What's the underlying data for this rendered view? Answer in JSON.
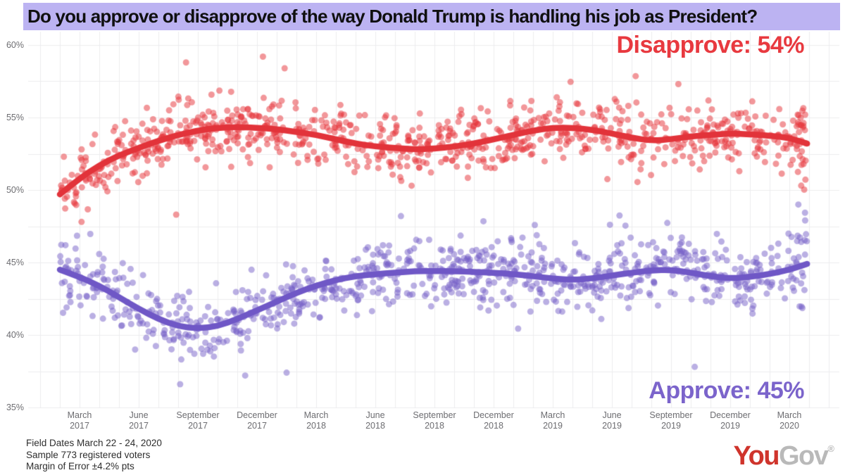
{
  "banner": {
    "title": "Do you approve or disapprove of the way Donald Trump is handling his job as President?",
    "bg_color": "#bcb3f2"
  },
  "chart_data": {
    "type": "scatter",
    "title": "Do you approve or disapprove of the way Donald Trump is handling his job as President?",
    "xlabel": "",
    "ylabel": "",
    "ylim": [
      35,
      60
    ],
    "grid": {
      "on": true,
      "color": "#ececee",
      "horizontal_step_pct": 2.5,
      "vertical_every_months": 1
    },
    "x_axis": {
      "note": "m = months since Jan 2017",
      "ticks": [
        {
          "month": "March",
          "year": "2017",
          "m": 2
        },
        {
          "month": "June",
          "year": "2017",
          "m": 5
        },
        {
          "month": "September",
          "year": "2017",
          "m": 8
        },
        {
          "month": "December",
          "year": "2017",
          "m": 11
        },
        {
          "month": "March",
          "year": "2018",
          "m": 14
        },
        {
          "month": "June",
          "year": "2018",
          "m": 17
        },
        {
          "month": "September",
          "year": "2018",
          "m": 20
        },
        {
          "month": "December",
          "year": "2018",
          "m": 23
        },
        {
          "month": "March",
          "year": "2019",
          "m": 26
        },
        {
          "month": "June",
          "year": "2019",
          "m": 29
        },
        {
          "month": "September",
          "year": "2019",
          "m": 32
        },
        {
          "month": "December",
          "year": "2019",
          "m": 35
        },
        {
          "month": "March",
          "year": "2020",
          "m": 38
        }
      ]
    },
    "y_axis": {
      "ticks": [
        {
          "label": "60%",
          "v": 60
        },
        {
          "label": "55%",
          "v": 55
        },
        {
          "label": "50%",
          "v": 50
        },
        {
          "label": "45%",
          "v": 45
        },
        {
          "label": "40%",
          "v": 40
        },
        {
          "label": "35%",
          "v": 35
        }
      ]
    },
    "series": [
      {
        "name": "Disapprove",
        "label": "Disapprove: 54%",
        "current_value": "54%",
        "label_color": "#e8393f",
        "line_color": "#e2333a",
        "dot_color": "230,55,62",
        "dot_alpha": 0.52,
        "trend": [
          [
            1,
            49.7
          ],
          [
            2,
            50.8
          ],
          [
            3,
            51.7
          ],
          [
            4,
            52.4
          ],
          [
            5,
            52.9
          ],
          [
            6,
            53.4
          ],
          [
            7,
            53.8
          ],
          [
            8,
            54.1
          ],
          [
            9,
            54.3
          ],
          [
            10,
            54.35
          ],
          [
            11,
            54.3
          ],
          [
            12,
            54.2
          ],
          [
            13,
            54.0
          ],
          [
            14,
            53.8
          ],
          [
            15,
            53.5
          ],
          [
            16,
            53.2
          ],
          [
            17,
            53.0
          ],
          [
            18,
            52.9
          ],
          [
            19,
            52.8
          ],
          [
            20,
            52.85
          ],
          [
            21,
            53.0
          ],
          [
            22,
            53.2
          ],
          [
            23,
            53.5
          ],
          [
            24,
            53.8
          ],
          [
            25,
            54.1
          ],
          [
            26,
            54.3
          ],
          [
            27,
            54.3
          ],
          [
            28,
            54.15
          ],
          [
            29,
            53.9
          ],
          [
            30,
            53.6
          ],
          [
            31,
            53.4
          ],
          [
            32,
            53.5
          ],
          [
            33,
            53.7
          ],
          [
            34,
            53.8
          ],
          [
            35,
            53.9
          ],
          [
            36,
            53.85
          ],
          [
            37,
            53.75
          ],
          [
            38,
            53.6
          ],
          [
            38.9,
            53.2
          ]
        ],
        "scatter": {
          "n": 900,
          "sd": 1.1,
          "seed": 42,
          "edge_cluster": {
            "n": 12,
            "sd_mult": 1.6
          }
        },
        "outliers": [
          [
            11.3,
            59.2
          ],
          [
            7.4,
            58.8
          ],
          [
            12.4,
            58.4
          ],
          [
            2.1,
            47.8
          ],
          [
            6.9,
            48.3
          ],
          [
            38.6,
            50.3
          ]
        ]
      },
      {
        "name": "Approve",
        "label": "Approve: 45%",
        "current_value": "45%",
        "label_color": "#7b64cb",
        "line_color": "#6f57c6",
        "dot_color": "118,96,200",
        "dot_alpha": 0.5,
        "trend": [
          [
            1,
            44.5
          ],
          [
            2,
            44.0
          ],
          [
            3,
            43.4
          ],
          [
            4,
            42.6
          ],
          [
            5,
            41.8
          ],
          [
            6,
            41.1
          ],
          [
            7,
            40.6
          ],
          [
            8,
            40.45
          ],
          [
            9,
            40.6
          ],
          [
            10,
            41.1
          ],
          [
            11,
            41.7
          ],
          [
            12,
            42.3
          ],
          [
            13,
            42.9
          ],
          [
            14,
            43.4
          ],
          [
            15,
            43.8
          ],
          [
            16,
            44.05
          ],
          [
            17,
            44.2
          ],
          [
            18,
            44.3
          ],
          [
            19,
            44.4
          ],
          [
            20,
            44.4
          ],
          [
            21,
            44.4
          ],
          [
            22,
            44.35
          ],
          [
            23,
            44.3
          ],
          [
            24,
            44.2
          ],
          [
            25,
            44.05
          ],
          [
            26,
            43.9
          ],
          [
            27,
            43.8
          ],
          [
            28,
            43.9
          ],
          [
            29,
            44.1
          ],
          [
            30,
            44.3
          ],
          [
            31,
            44.45
          ],
          [
            32,
            44.5
          ],
          [
            33,
            44.3
          ],
          [
            34,
            44.05
          ],
          [
            35,
            43.9
          ],
          [
            36,
            44.0
          ],
          [
            37,
            44.2
          ],
          [
            38,
            44.5
          ],
          [
            38.9,
            44.9
          ]
        ],
        "scatter": {
          "n": 900,
          "sd": 1.15,
          "seed": 7,
          "edge_cluster": {
            "n": 12,
            "sd_mult": 1.6
          }
        },
        "outliers": [
          [
            7.1,
            36.6
          ],
          [
            10.4,
            37.2
          ],
          [
            12.5,
            37.4
          ],
          [
            18.3,
            48.2
          ],
          [
            28.9,
            47.6
          ],
          [
            33.2,
            37.8
          ],
          [
            38.8,
            47.9
          ]
        ]
      }
    ]
  },
  "footer": {
    "lines": [
      "Field Dates March 22 - 24, 2020",
      "Sample 773 registered voters",
      "Margin of Error ±4.2% pts"
    ]
  },
  "logo": {
    "part1": "You",
    "part2": "Gov",
    "registered": "®",
    "part1_color": "#cf342c",
    "part2_color": "#b9b9b9"
  }
}
